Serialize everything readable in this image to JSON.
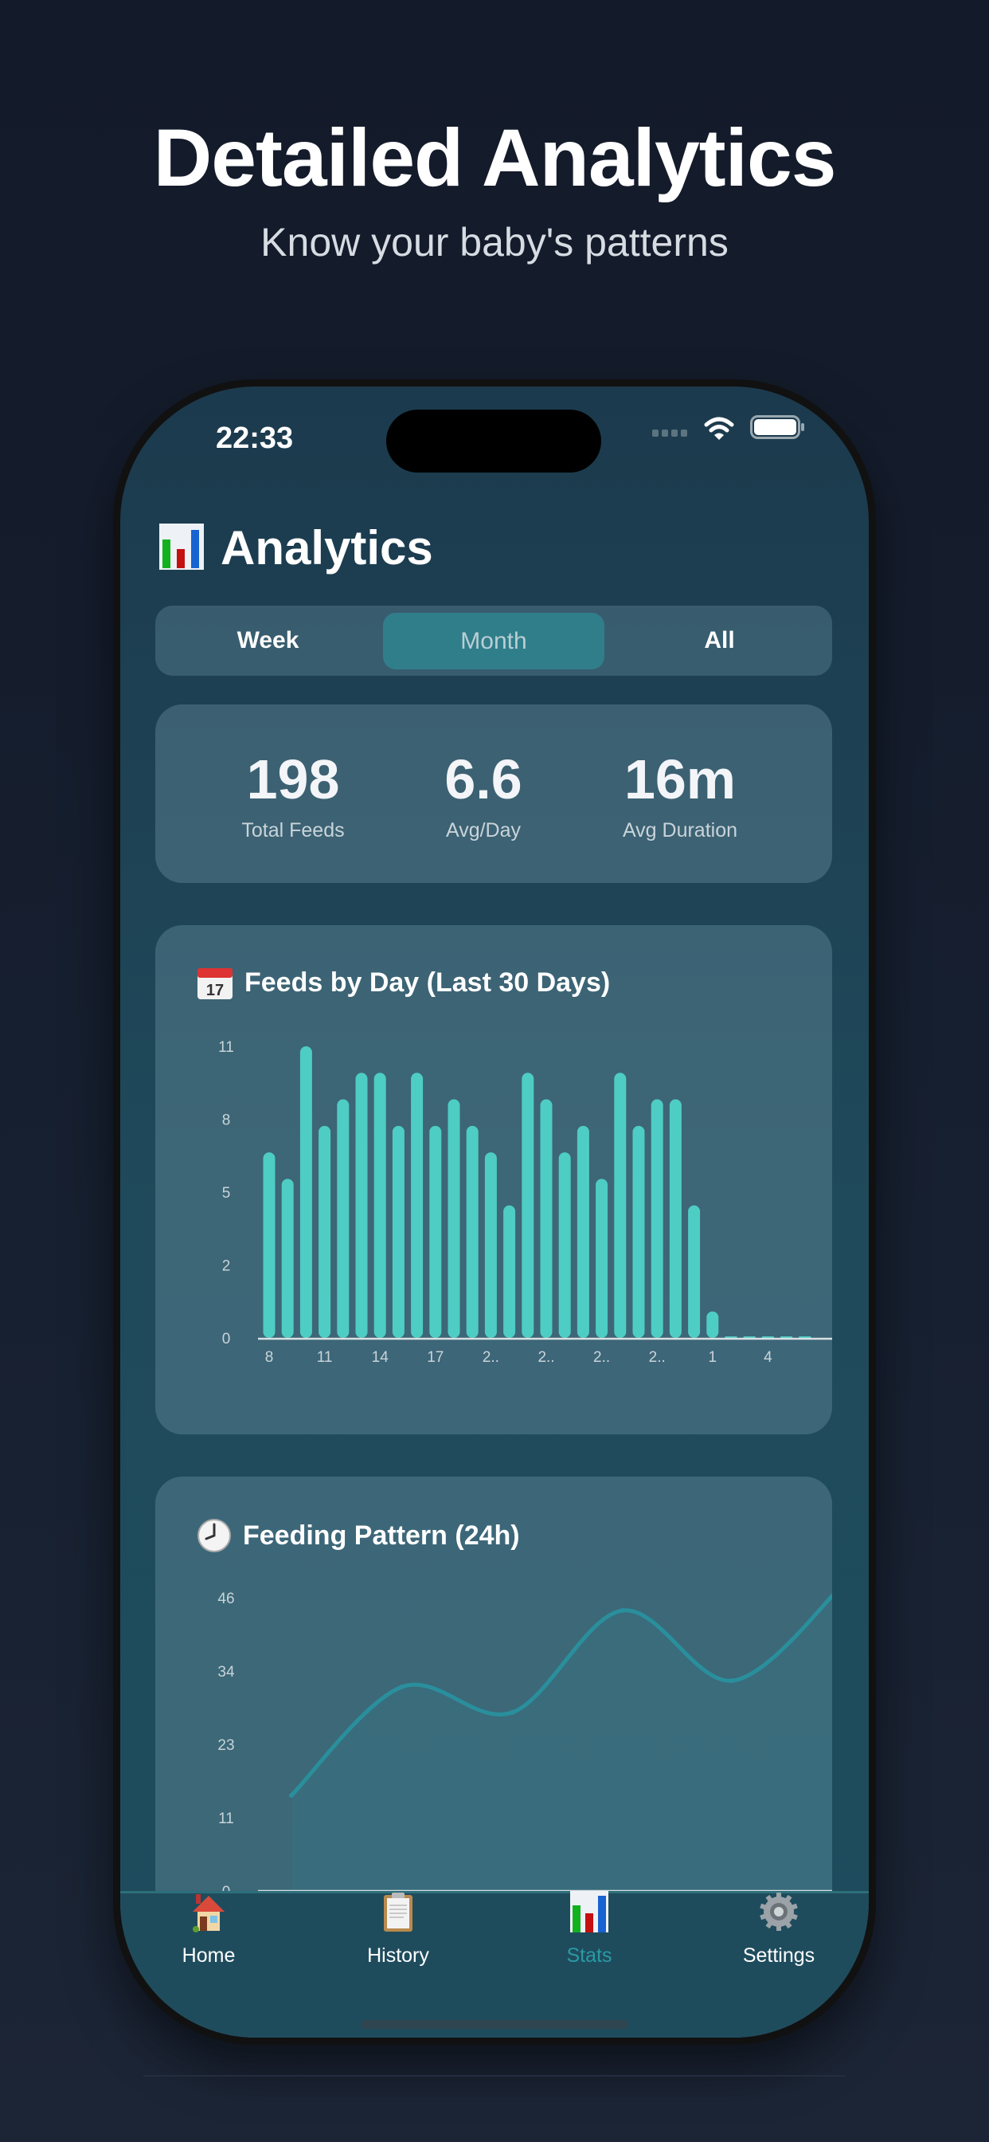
{
  "hero": {
    "title": "Detailed Analytics",
    "subtitle": "Know your baby's patterns"
  },
  "status_bar": {
    "time": "22:33"
  },
  "header": {
    "icon": "bar-chart-icon",
    "title": "Analytics"
  },
  "segments": {
    "items": [
      {
        "label": "Week"
      },
      {
        "label": "Month"
      },
      {
        "label": "All"
      }
    ],
    "selected": "Month"
  },
  "stats": [
    {
      "value": "198",
      "label": "Total Feeds"
    },
    {
      "value": "6.6",
      "label": "Avg/Day"
    },
    {
      "value": "16m",
      "label": "Avg Duration"
    }
  ],
  "colors": {
    "accent": "#4ecdc4",
    "selected_segment": "#317e8b",
    "active_tab": "#2a9aa6",
    "line": "#2a8f9c"
  },
  "chart_data": [
    {
      "type": "bar",
      "title": "Feeds by Day (Last 30 Days)",
      "icon": "calendar-icon",
      "values": [
        7,
        6,
        11,
        8,
        9,
        10,
        10,
        8,
        10,
        8,
        9,
        8,
        7,
        5,
        10,
        9,
        7,
        8,
        6,
        10,
        8,
        9,
        9,
        5,
        1,
        0,
        0,
        0,
        0,
        0
      ],
      "x_tick_labels": [
        "8",
        "11",
        "14",
        "17",
        "2..",
        "2..",
        "2..",
        "2..",
        "1",
        "4"
      ],
      "y_tick_labels": [
        "0",
        "2",
        "5",
        "8",
        "11"
      ],
      "ylim": [
        0,
        11
      ],
      "grid": false
    },
    {
      "type": "area",
      "title": "Feeding Pattern (24h)",
      "icon": "clock-icon",
      "values": [
        15,
        32,
        28,
        44,
        33,
        48
      ],
      "y_tick_labels": [
        "0",
        "11",
        "23",
        "34",
        "46"
      ],
      "ylim": [
        0,
        46
      ],
      "grid": false
    }
  ],
  "tabs": [
    {
      "label": "Home",
      "icon": "house-icon"
    },
    {
      "label": "History",
      "icon": "clipboard-icon"
    },
    {
      "label": "Stats",
      "icon": "bar-chart-icon",
      "active": true
    },
    {
      "label": "Settings",
      "icon": "gear-icon"
    }
  ]
}
